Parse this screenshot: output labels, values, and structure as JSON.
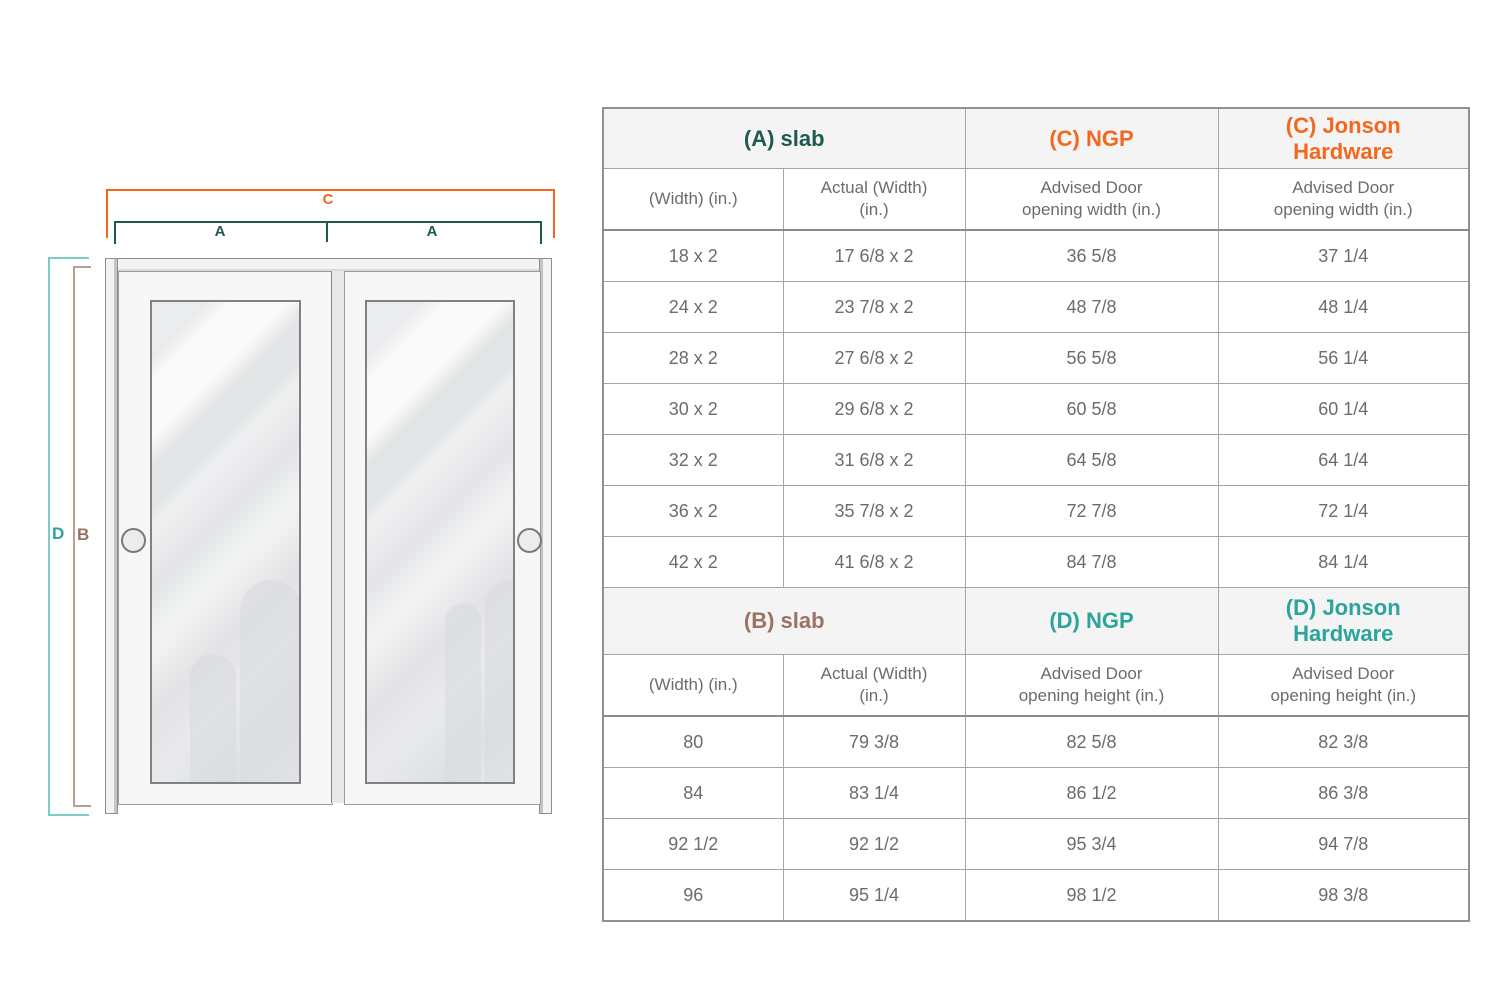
{
  "diagram": {
    "labels": {
      "c": "C",
      "a_left": "A",
      "a_right": "A",
      "d": "D",
      "b": "B"
    },
    "colors": {
      "bracket_c_orange": "#F3681E",
      "bracket_a_dark_teal": "#1F5A52",
      "bracket_d_light_teal": "#7CCDC6",
      "bracket_b_light_brown": "#BA9E8E",
      "label_d_teal": "#2CA49A",
      "label_b_brown": "#9B7263"
    }
  },
  "table": {
    "text_color": "#6B6C6F",
    "header_bg": "#F4F4F5",
    "sections": [
      {
        "group_headers": [
          {
            "lines": [
              "(A) slab"
            ],
            "color": "#1F5A52",
            "colspan": 2
          },
          {
            "lines": [
              "(C) NGP"
            ],
            "color": "#F3681E",
            "colspan": 1
          },
          {
            "lines": [
              "(C) Jonson",
              "Hardware"
            ],
            "color": "#F3681E",
            "colspan": 1
          }
        ],
        "column_headers": [
          [
            "(Width) (in.)"
          ],
          [
            "Actual (Width)",
            "(in.)"
          ],
          [
            "Advised Door",
            "opening width (in.)"
          ],
          [
            "Advised Door",
            "opening width (in.)"
          ]
        ],
        "rows": [
          [
            "18 x 2",
            "17 6/8 x 2",
            "36 5/8",
            "37 1/4"
          ],
          [
            "24 x 2",
            "23 7/8 x 2",
            "48 7/8",
            "48 1/4"
          ],
          [
            "28 x 2",
            "27 6/8 x 2",
            "56 5/8",
            "56 1/4"
          ],
          [
            "30 x 2",
            "29 6/8 x 2",
            "60 5/8",
            "60 1/4"
          ],
          [
            "32 x 2",
            "31 6/8 x 2",
            "64 5/8",
            "64 1/4"
          ],
          [
            "36 x 2",
            "35 7/8 x 2",
            "72 7/8",
            "72 1/4"
          ],
          [
            "42 x 2",
            "41 6/8 x 2",
            "84 7/8",
            "84 1/4"
          ]
        ]
      },
      {
        "group_headers": [
          {
            "lines": [
              "(B) slab"
            ],
            "color": "#9B7263",
            "colspan": 2
          },
          {
            "lines": [
              "(D) NGP"
            ],
            "color": "#2CA49A",
            "colspan": 1
          },
          {
            "lines": [
              "(D) Jonson",
              "Hardware"
            ],
            "color": "#2CA49A",
            "colspan": 1
          }
        ],
        "column_headers": [
          [
            "(Width) (in.)"
          ],
          [
            "Actual (Width)",
            "(in.)"
          ],
          [
            "Advised Door",
            "opening height (in.)"
          ],
          [
            "Advised Door",
            "opening height (in.)"
          ]
        ],
        "rows": [
          [
            "80",
            "79 3/8",
            "82 5/8",
            "82 3/8"
          ],
          [
            "84",
            "83 1/4",
            "86 1/2",
            "86 3/8"
          ],
          [
            "92 1/2",
            "92 1/2",
            "95 3/4",
            "94 7/8"
          ],
          [
            "96",
            "95 1/4",
            "98 1/2",
            "98 3/8"
          ]
        ]
      }
    ]
  }
}
